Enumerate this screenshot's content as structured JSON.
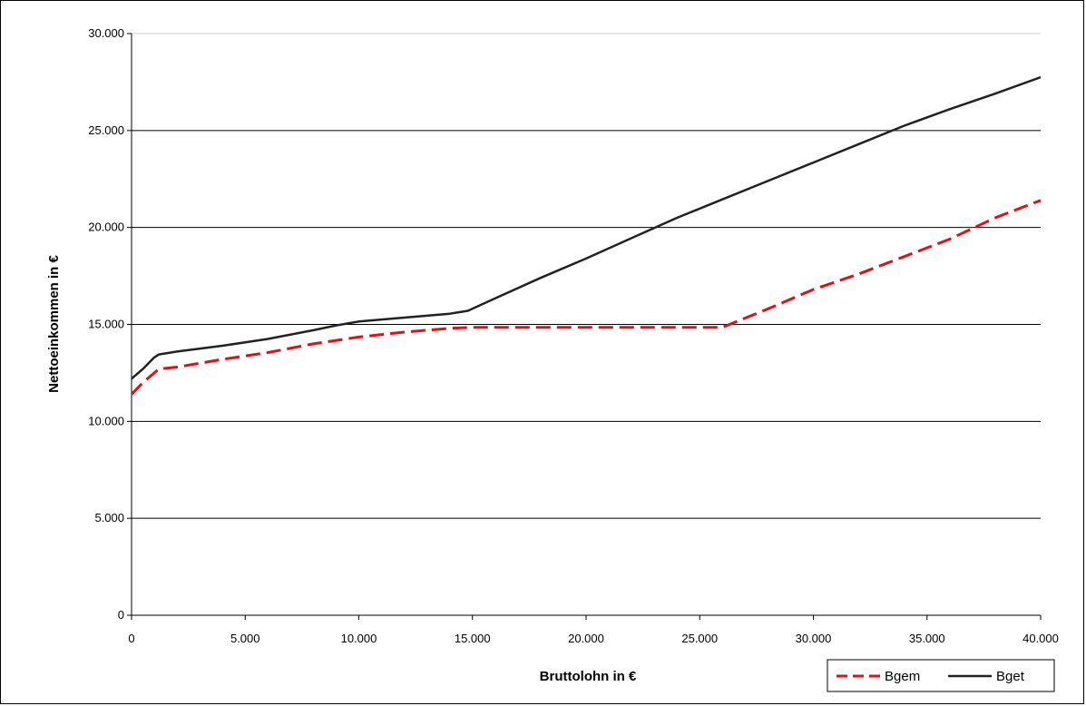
{
  "chart_data": {
    "type": "line",
    "xlabel": "Bruttolohn in €",
    "ylabel": "Nettoeinkommen in €",
    "xlim": [
      0,
      40000
    ],
    "ylim": [
      0,
      30000
    ],
    "x_ticks": [
      0,
      5000,
      10000,
      15000,
      20000,
      25000,
      30000,
      35000,
      40000
    ],
    "x_tick_labels": [
      "0",
      "5.000",
      "10.000",
      "15.000",
      "20.000",
      "25.000",
      "30.000",
      "35.000",
      "40.000"
    ],
    "y_ticks": [
      0,
      5000,
      10000,
      15000,
      20000,
      25000,
      30000
    ],
    "y_tick_labels": [
      "0",
      "5.000",
      "10.000",
      "15.000",
      "20.000",
      "25.000",
      "30.000"
    ],
    "grid": "horizontal",
    "legend_position": "bottom-right",
    "series": [
      {
        "name": "Bgem",
        "color": "#e0101a",
        "style": "dashed",
        "points": [
          [
            0,
            11400
          ],
          [
            500,
            12000
          ],
          [
            1000,
            12500
          ],
          [
            1200,
            12700
          ],
          [
            2000,
            12800
          ],
          [
            4000,
            13200
          ],
          [
            6000,
            13550
          ],
          [
            8000,
            14000
          ],
          [
            10000,
            14350
          ],
          [
            12000,
            14600
          ],
          [
            14000,
            14800
          ],
          [
            15000,
            14850
          ],
          [
            26000,
            14850
          ],
          [
            28000,
            15800
          ],
          [
            30000,
            16800
          ],
          [
            32000,
            17600
          ],
          [
            34000,
            18500
          ],
          [
            36000,
            19400
          ],
          [
            38000,
            20500
          ],
          [
            40000,
            21400
          ]
        ]
      },
      {
        "name": "Bget",
        "color": "#222222",
        "style": "solid",
        "points": [
          [
            0,
            12200
          ],
          [
            500,
            12700
          ],
          [
            1000,
            13300
          ],
          [
            1200,
            13450
          ],
          [
            2000,
            13600
          ],
          [
            4000,
            13900
          ],
          [
            6000,
            14250
          ],
          [
            8000,
            14700
          ],
          [
            9000,
            14950
          ],
          [
            10000,
            15150
          ],
          [
            12000,
            15350
          ],
          [
            14000,
            15550
          ],
          [
            14800,
            15700
          ],
          [
            16000,
            16350
          ],
          [
            18000,
            17400
          ],
          [
            20000,
            18400
          ],
          [
            22000,
            19450
          ],
          [
            24000,
            20500
          ],
          [
            26000,
            21450
          ],
          [
            28000,
            22400
          ],
          [
            30000,
            23350
          ],
          [
            32000,
            24300
          ],
          [
            34000,
            25250
          ],
          [
            36000,
            26100
          ],
          [
            38000,
            26900
          ],
          [
            40000,
            27750
          ]
        ]
      }
    ]
  }
}
